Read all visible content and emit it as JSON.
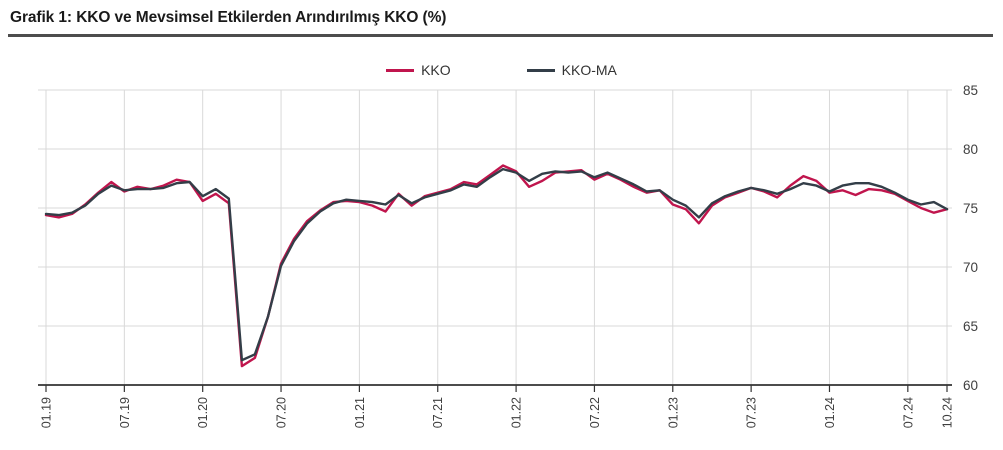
{
  "header": {
    "title": "Grafik 1: KKO ve Mevsimsel Etkilerden Arındırılmış KKO (%)"
  },
  "colors": {
    "kko": "#c0154d",
    "kko_ma": "#333e48",
    "gridline": "#d9d9d9",
    "axis_line": "#333333",
    "tick_text": "#3f3f3f",
    "title_text": "#1a1a1a",
    "rule": "#4d4d4d"
  },
  "chart_data": {
    "type": "line",
    "title": "Grafik 1: KKO ve Mevsimsel Etkilerden Arındırılmış KKO (%)",
    "xlabel": "",
    "ylabel": "",
    "ylim": [
      60,
      85
    ],
    "y_ticks": [
      60,
      65,
      70,
      75,
      80,
      85
    ],
    "y_axis_side": "right",
    "grid": true,
    "legend_position": "top",
    "x_start": "2019-01",
    "x_end": "2024-10",
    "x_months_total": 69,
    "x_tick_labels": [
      "01.19",
      "07.19",
      "01.20",
      "07.20",
      "01.21",
      "07.21",
      "01.22",
      "07.22",
      "01.23",
      "07.23",
      "01.24",
      "07.24",
      "10.24"
    ],
    "x_tick_months": [
      0,
      6,
      12,
      18,
      24,
      30,
      36,
      42,
      48,
      54,
      60,
      66,
      69
    ],
    "x_label_rotation_deg": -90,
    "series": [
      {
        "name": "KKO",
        "color": "#c0154d",
        "values": [
          74.4,
          74.2,
          74.5,
          75.3,
          76.3,
          77.2,
          76.4,
          76.8,
          76.6,
          76.9,
          77.4,
          77.2,
          75.6,
          76.2,
          75.4,
          61.6,
          62.3,
          65.8,
          70.3,
          72.4,
          73.9,
          74.8,
          75.5,
          75.6,
          75.5,
          75.2,
          74.7,
          76.2,
          75.2,
          76.0,
          76.3,
          76.6,
          77.2,
          77.0,
          77.8,
          78.6,
          78.1,
          76.8,
          77.3,
          78.0,
          78.1,
          78.2,
          77.4,
          77.9,
          77.4,
          76.8,
          76.3,
          76.5,
          75.3,
          74.9,
          73.7,
          75.2,
          75.9,
          76.3,
          76.7,
          76.4,
          75.9,
          76.9,
          77.7,
          77.3,
          76.3,
          76.5,
          76.1,
          76.6,
          76.5,
          76.2,
          75.6,
          75.0,
          74.6,
          74.9
        ]
      },
      {
        "name": "KKO-MA",
        "color": "#333e48",
        "values": [
          74.5,
          74.4,
          74.6,
          75.2,
          76.2,
          76.9,
          76.5,
          76.6,
          76.6,
          76.7,
          77.1,
          77.2,
          76.0,
          76.6,
          75.8,
          62.1,
          62.6,
          65.8,
          70.1,
          72.2,
          73.7,
          74.7,
          75.4,
          75.7,
          75.6,
          75.5,
          75.3,
          76.1,
          75.4,
          75.9,
          76.2,
          76.5,
          77.0,
          76.8,
          77.6,
          78.3,
          78.0,
          77.3,
          77.9,
          78.1,
          78.0,
          78.1,
          77.6,
          78.0,
          77.5,
          77.0,
          76.4,
          76.5,
          75.7,
          75.2,
          74.2,
          75.4,
          76.0,
          76.4,
          76.7,
          76.5,
          76.2,
          76.6,
          77.1,
          76.9,
          76.4,
          76.9,
          77.1,
          77.1,
          76.8,
          76.3,
          75.7,
          75.3,
          75.5,
          74.9
        ]
      }
    ]
  }
}
